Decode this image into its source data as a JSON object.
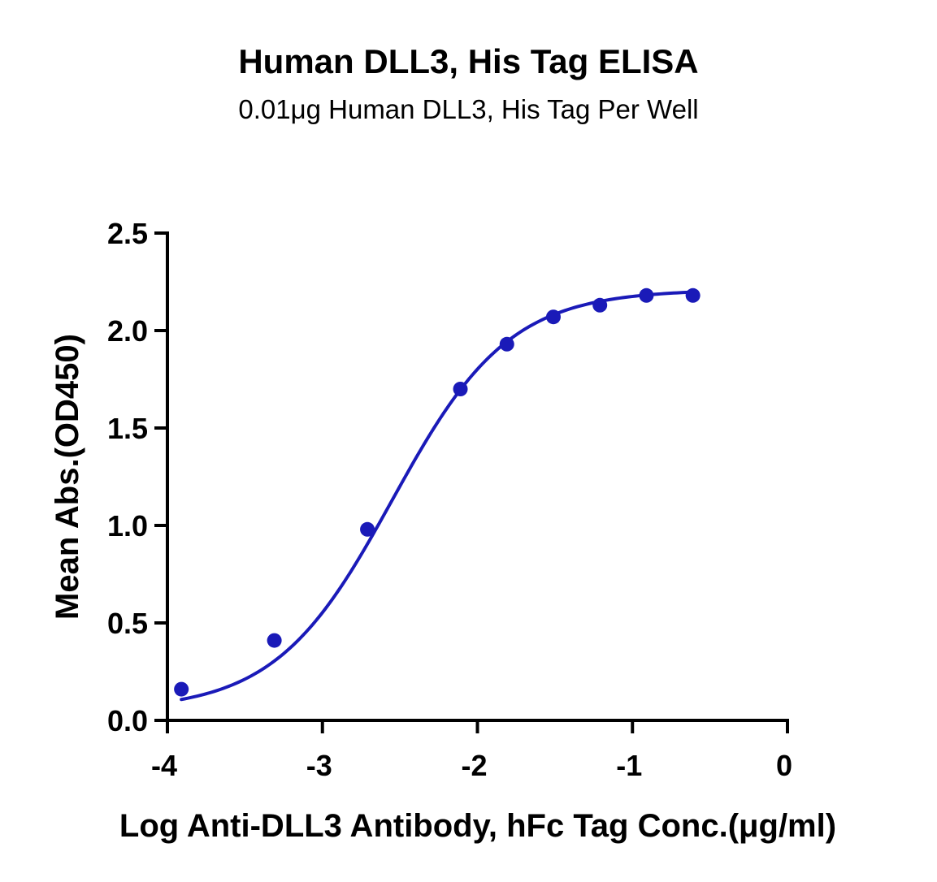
{
  "chart_data": {
    "type": "scatter",
    "title": "Human DLL3, His Tag ELISA",
    "subtitle": "0.01μg Human DLL3, His Tag Per Well",
    "xlabel": "Log Anti-DLL3 Antibody, hFc Tag Conc.(μg/ml)",
    "ylabel": "Mean Abs.(OD450)",
    "xlim": [
      -4,
      0
    ],
    "ylim": [
      0,
      2.5
    ],
    "x_ticks": [
      -4,
      -3,
      -2,
      -1,
      0
    ],
    "x_tick_labels": [
      "-4",
      "-3",
      "-2",
      "-1",
      "0"
    ],
    "y_ticks": [
      0,
      0.5,
      1.0,
      1.5,
      2.0,
      2.5
    ],
    "y_tick_labels": [
      "0.0",
      "0.5",
      "1.0",
      "1.5",
      "2.0",
      "2.5"
    ],
    "grid": false,
    "series": [
      {
        "color": "#1a1ab8",
        "x": [
          -3.91,
          -3.31,
          -2.71,
          -2.11,
          -1.81,
          -1.51,
          -1.21,
          -0.91,
          -0.61
        ],
        "y": [
          0.16,
          0.41,
          0.98,
          1.7,
          1.93,
          2.07,
          2.13,
          2.18,
          2.18
        ]
      }
    ],
    "fit": {
      "model": "4PL",
      "bottom": 0.05,
      "top": 2.21,
      "logEC50": -2.55,
      "hill": 1.15,
      "x_range": [
        -3.91,
        -0.61
      ]
    }
  }
}
